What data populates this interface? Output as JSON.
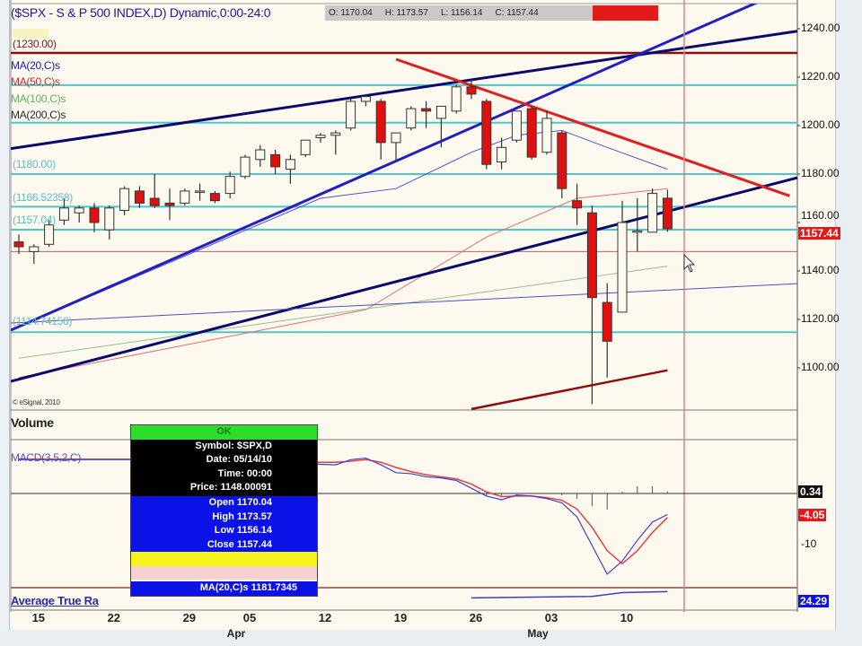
{
  "header": {
    "title": "($SPX - S & P 500 INDEX,D) Dynamic,0:00-24:0",
    "open": "O: 1170.04",
    "high": "H: 1173.57",
    "low": "L: 1156.14",
    "close": "C: 1157.44"
  },
  "study_labels": {
    "level_1230": "(1230.00)",
    "ma20": "MA(20,C)s",
    "ma50": "MA(50,C)s",
    "ma100": "MA(100,C)s",
    "ma200": "MA(200,C)s",
    "level_1180": "(1180.00)",
    "level_1166": "(1166.52358)",
    "level_1157": "(1157.04)",
    "level_1114": "(1114.74156)",
    "copyright": "© eSignal, 2010"
  },
  "panels": {
    "volume": "Volume",
    "macd": "MACD(3,5,2,C)",
    "macd_tick": "-10",
    "macd_value_1": "0.34",
    "macd_value_2": "-4.05",
    "atr": "Average True Ra",
    "atr_value": "24.29"
  },
  "last_price_badge": "1157.44",
  "tooltip": {
    "ok": "OK",
    "symbol": "Symbol: $SPX,D",
    "date": "Date: 05/14/10",
    "time": "Time: 00:00",
    "price": "Price: 1148.00091",
    "open": "Open 1170.04",
    "high": "High 1173.57",
    "low": "Low 1156.14",
    "close": "Close 1157.44",
    "ma20": "MA(20,C)s 1181.7345"
  },
  "colors": {
    "background": "#fdf9ee",
    "down_candle": "#e01010",
    "level_lines": "#4cc8c8",
    "trend_navy": "#0a0a6e",
    "trend_blue": "#2020c0",
    "trend_red": "#e02020",
    "ma20": "#5050d0",
    "ma50": "#e07070",
    "ma100": "#90c090",
    "ma200": "#8a1010"
  },
  "chart_data": {
    "type": "candlestick",
    "y_axis_ticks": [
      "1240.00",
      "1220.00",
      "1200.00",
      "1180.00",
      "1160.00",
      "1140.00",
      "1120.00",
      "1100.00"
    ],
    "ylim": [
      1082,
      1250
    ],
    "x_tick_labels": [
      {
        "date": "03/15",
        "label": "15"
      },
      {
        "date": "03/22",
        "label": "22"
      },
      {
        "date": "03/29",
        "label": "29"
      },
      {
        "date": "04/05",
        "label": "05"
      },
      {
        "date": "04/12",
        "label": "12"
      },
      {
        "date": "04/19",
        "label": "19"
      },
      {
        "date": "04/26",
        "label": "26"
      },
      {
        "date": "05/03",
        "label": "03"
      },
      {
        "date": "05/10",
        "label": "10"
      }
    ],
    "month_labels": [
      {
        "date": "04/05",
        "label": "Apr"
      },
      {
        "date": "05/03",
        "label": "May"
      }
    ],
    "candles": [
      {
        "d": "03/12",
        "o": 1152,
        "h": 1155,
        "l": 1147,
        "c": 1150
      },
      {
        "d": "03/15",
        "o": 1148,
        "h": 1151,
        "l": 1143,
        "c": 1150
      },
      {
        "d": "03/16",
        "o": 1151,
        "h": 1161,
        "l": 1150,
        "c": 1159
      },
      {
        "d": "03/17",
        "o": 1161,
        "h": 1170,
        "l": 1159,
        "c": 1166
      },
      {
        "d": "03/18",
        "o": 1164,
        "h": 1167,
        "l": 1160,
        "c": 1166
      },
      {
        "d": "03/19",
        "o": 1166,
        "h": 1168,
        "l": 1156,
        "c": 1160
      },
      {
        "d": "03/22",
        "o": 1157,
        "h": 1167,
        "l": 1153,
        "c": 1166
      },
      {
        "d": "03/23",
        "o": 1165,
        "h": 1175,
        "l": 1163,
        "c": 1174
      },
      {
        "d": "03/24",
        "o": 1173,
        "h": 1175,
        "l": 1166,
        "c": 1168
      },
      {
        "d": "03/25",
        "o": 1170,
        "h": 1180,
        "l": 1166,
        "c": 1167
      },
      {
        "d": "03/26",
        "o": 1168,
        "h": 1174,
        "l": 1161,
        "c": 1167
      },
      {
        "d": "03/29",
        "o": 1168,
        "h": 1174,
        "l": 1167,
        "c": 1173
      },
      {
        "d": "03/30",
        "o": 1173,
        "h": 1176,
        "l": 1169,
        "c": 1173
      },
      {
        "d": "03/31",
        "o": 1172,
        "h": 1173,
        "l": 1168,
        "c": 1169
      },
      {
        "d": "04/01",
        "o": 1172,
        "h": 1181,
        "l": 1170,
        "c": 1179
      },
      {
        "d": "04/05",
        "o": 1179,
        "h": 1188,
        "l": 1178,
        "c": 1187
      },
      {
        "d": "04/06",
        "o": 1186,
        "h": 1192,
        "l": 1183,
        "c": 1190
      },
      {
        "d": "04/07",
        "o": 1188,
        "h": 1190,
        "l": 1180,
        "c": 1183
      },
      {
        "d": "04/08",
        "o": 1182,
        "h": 1188,
        "l": 1176,
        "c": 1186
      },
      {
        "d": "04/09",
        "o": 1188,
        "h": 1194,
        "l": 1187,
        "c": 1194
      },
      {
        "d": "04/12",
        "o": 1195,
        "h": 1197,
        "l": 1193,
        "c": 1196
      },
      {
        "d": "04/13",
        "o": 1196,
        "h": 1198,
        "l": 1188,
        "c": 1197
      },
      {
        "d": "04/14",
        "o": 1199,
        "h": 1211,
        "l": 1198,
        "c": 1210
      },
      {
        "d": "04/15",
        "o": 1210,
        "h": 1213,
        "l": 1208,
        "c": 1212
      },
      {
        "d": "04/16",
        "o": 1210,
        "h": 1211,
        "l": 1186,
        "c": 1193
      },
      {
        "d": "04/19",
        "o": 1193,
        "h": 1197,
        "l": 1185,
        "c": 1197
      },
      {
        "d": "04/20",
        "o": 1199,
        "h": 1208,
        "l": 1198,
        "c": 1207
      },
      {
        "d": "04/21",
        "o": 1207,
        "h": 1210,
        "l": 1199,
        "c": 1206
      },
      {
        "d": "04/22",
        "o": 1203,
        "h": 1208,
        "l": 1191,
        "c": 1208
      },
      {
        "d": "04/23",
        "o": 1206,
        "h": 1217,
        "l": 1205,
        "c": 1216
      },
      {
        "d": "04/26",
        "o": 1216,
        "h": 1219,
        "l": 1211,
        "c": 1213
      },
      {
        "d": "04/27",
        "o": 1210,
        "h": 1211,
        "l": 1182,
        "c": 1184
      },
      {
        "d": "04/28",
        "o": 1185,
        "h": 1195,
        "l": 1182,
        "c": 1191
      },
      {
        "d": "04/29",
        "o": 1194,
        "h": 1206,
        "l": 1193,
        "c": 1206
      },
      {
        "d": "04/30",
        "o": 1207,
        "h": 1208,
        "l": 1186,
        "c": 1187
      },
      {
        "d": "05/03",
        "o": 1189,
        "h": 1206,
        "l": 1188,
        "c": 1203
      },
      {
        "d": "05/04",
        "o": 1197,
        "h": 1198,
        "l": 1170,
        "c": 1174
      },
      {
        "d": "05/05",
        "o": 1169,
        "h": 1176,
        "l": 1159,
        "c": 1166
      },
      {
        "d": "05/06",
        "o": 1164,
        "h": 1167,
        "l": 1085,
        "c": 1129
      },
      {
        "d": "05/07",
        "o": 1127,
        "h": 1135,
        "l": 1096,
        "c": 1111
      },
      {
        "d": "05/10",
        "o": 1123,
        "h": 1169,
        "l": 1123,
        "c": 1160
      },
      {
        "d": "05/11",
        "o": 1156,
        "h": 1170,
        "l": 1148,
        "c": 1156.5
      },
      {
        "d": "05/12",
        "o": 1156,
        "h": 1174,
        "l": 1156,
        "c": 1172
      },
      {
        "d": "05/13",
        "o": 1170.04,
        "h": 1173.57,
        "l": 1156.14,
        "c": 1157.44
      }
    ],
    "horizontal_levels": [
      {
        "price": 1230,
        "color": "#8a1010"
      },
      {
        "price": 1216.7,
        "color": "#4cc8c8"
      },
      {
        "price": 1201.2,
        "color": "#4cc8c8"
      },
      {
        "price": 1180,
        "color": "#4cc8c8"
      },
      {
        "price": 1166.52358,
        "color": "#4cc8c8"
      },
      {
        "price": 1157.04,
        "color": "#4cc8c8"
      },
      {
        "price": 1148.00091,
        "color": "#c06060"
      },
      {
        "price": 1114.74156,
        "color": "#4cc8c8"
      }
    ],
    "trendlines": [
      {
        "p1": [
          "03/12",
          1191
        ],
        "p2": [
          "05/13",
          1231
        ],
        "color": "#0a0a6e",
        "extend": true
      },
      {
        "p1": [
          "03/12",
          1095.3
        ],
        "p2": [
          "05/13",
          1164.6
        ],
        "color": "#0a0a6e",
        "extend": true
      },
      {
        "p1": [
          "03/12",
          1117
        ],
        "p2": [
          "05/13",
          1234.6
        ],
        "color": "#2020c0",
        "extend": true
      },
      {
        "p1": [
          "03/12",
          1118.7
        ],
        "p2": [
          "05/13",
          1132.1
        ],
        "color": "#5050c0",
        "extend": true
      },
      {
        "p1": [
          "04/19",
          1227.4
        ],
        "p2": [
          "05/13",
          1188.5
        ],
        "color": "#e02020",
        "extend_to_price": 1171
      }
    ],
    "moving_averages": [
      {
        "name": "MA(20,C)s",
        "color": "#5050d0",
        "points": [
          [
            "03/12",
            1117
          ],
          [
            "04/12",
            1170
          ],
          [
            "04/19",
            1174
          ],
          [
            "04/26",
            1189
          ],
          [
            "04/29",
            1196
          ],
          [
            "05/04",
            1198
          ],
          [
            "05/07",
            1191
          ],
          [
            "05/13",
            1182
          ]
        ]
      },
      {
        "name": "MA(50,C)s",
        "color": "#e07070",
        "points": [
          [
            "03/12",
            1096
          ],
          [
            "04/15",
            1124
          ],
          [
            "04/27",
            1154
          ],
          [
            "05/05",
            1170
          ],
          [
            "05/13",
            1174
          ]
        ]
      },
      {
        "name": "MA(100,C)s",
        "color": "#90c090",
        "points": [
          [
            "03/12",
            1104
          ],
          [
            "05/13",
            1142
          ]
        ]
      },
      {
        "name": "MA(200,C)s",
        "color": "#8a1010",
        "points": [
          [
            "04/26",
            1083
          ],
          [
            "05/13",
            1099
          ]
        ]
      }
    ],
    "macd": {
      "macd": [
        6.5,
        6.5,
        6.5,
        6.5,
        6.5,
        6.5,
        6.5,
        6.5,
        6.5,
        6.5,
        6.5,
        6.5,
        6.5,
        6.5,
        6.5,
        6.5,
        6.4,
        6.2,
        6,
        5.8,
        5.6,
        5.5,
        6.5,
        6.8,
        5.5,
        4.0,
        3.8,
        3.2,
        3.0,
        2.5,
        1.0,
        -0.5,
        -1.2,
        -0.3,
        -0.5,
        -1.0,
        -1.8,
        -4.5,
        -10,
        -15.5,
        -13,
        -9,
        -5.5,
        -4.05
      ],
      "signal": [
        6.6,
        6.6,
        6.6,
        6.6,
        6.6,
        6.6,
        6.6,
        6.6,
        6.6,
        6.6,
        6.6,
        6.6,
        6.6,
        6.6,
        6.6,
        6.6,
        6.5,
        6.4,
        6.2,
        6.1,
        6,
        6,
        6.2,
        6.5,
        6,
        5,
        4.2,
        3.6,
        3.2,
        2.8,
        1.8,
        0.3,
        -0.6,
        -0.5,
        -0.5,
        -0.8,
        -1.3,
        -3.0,
        -6.5,
        -11,
        -13.5,
        -11,
        -7.5,
        -4.6
      ]
    },
    "atr": [
      [
        "04/26",
        16
      ],
      [
        "05/06",
        18
      ],
      [
        "05/10",
        23
      ],
      [
        "05/13",
        24.29
      ]
    ]
  }
}
